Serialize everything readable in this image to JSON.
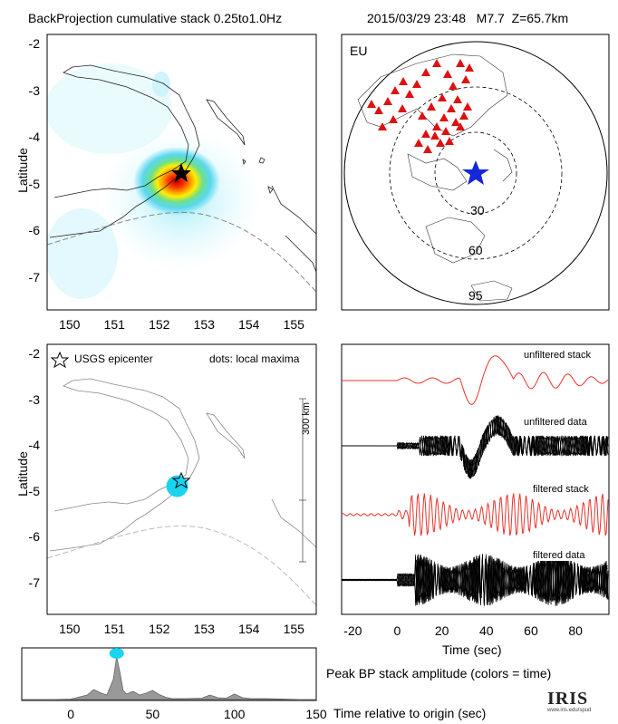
{
  "header": {
    "title": "BackProjection cumulative stack 0.25to1.0Hz",
    "event": "2015/03/29 23:48   M7.7  Z=65.7km"
  },
  "map_panel": {
    "ylabel": "Latitude",
    "yticks": [
      "-2",
      "-3",
      "-4",
      "-5",
      "-6",
      "-7"
    ],
    "xticks": [
      "150",
      "151",
      "152",
      "153",
      "154",
      "155"
    ]
  },
  "globe_panel": {
    "label": "EU",
    "ring_labels": [
      "30",
      "60",
      "95"
    ]
  },
  "maxima_panel": {
    "ylabel": "Latitude",
    "legend_star": "USGS epicenter",
    "legend_dots": "dots: local maxima",
    "scale_label": "300 km",
    "yticks": [
      "-2",
      "-3",
      "-4",
      "-5",
      "-6",
      "-7"
    ],
    "xticks": [
      "150",
      "151",
      "152",
      "153",
      "154",
      "155"
    ]
  },
  "traces_panel": {
    "labels": [
      "unfiltered stack",
      "unfiltered data",
      "filtered stack",
      "filtered data"
    ],
    "xticks": [
      "-20",
      "0",
      "20",
      "40",
      "60",
      "80"
    ],
    "xlabel": "Time (sec)"
  },
  "peak_panel": {
    "caption": "Peak BP stack amplitude (colors = time)",
    "xticks": [
      "0",
      "50",
      "100",
      "150"
    ],
    "xlabel": "Time relative to origin (sec)"
  },
  "logo": {
    "text": "IRIS",
    "url": "www.iris.edu/spud"
  },
  "colors": {
    "stack_trace": "#e8332a",
    "data_trace": "#000000",
    "epicenter_star_globe": "#1428d8",
    "stations": "#dd1111",
    "maxima": "#19d4ee"
  },
  "chart_data": [
    {
      "type": "heatmap",
      "xlim": [
        149.5,
        155.5
      ],
      "ylim": [
        -7.7,
        -1.8
      ],
      "peak": {
        "lon": 152.4,
        "lat": -4.9
      },
      "epicenter": {
        "lon": 152.55,
        "lat": -4.75
      }
    },
    {
      "type": "scatter",
      "xlim": [
        149.5,
        155.5
      ],
      "ylim": [
        -7.7,
        -1.8
      ],
      "local_maxima": [
        {
          "lon": 152.4,
          "lat": -4.9
        }
      ],
      "epicenter": {
        "lon": 152.55,
        "lat": -4.75
      }
    },
    {
      "type": "line",
      "xlim": [
        -25,
        95
      ],
      "series": [
        {
          "name": "unfiltered stack"
        },
        {
          "name": "unfiltered data"
        },
        {
          "name": "filtered stack"
        },
        {
          "name": "filtered data"
        }
      ]
    },
    {
      "type": "area",
      "xlim": [
        -30,
        150
      ],
      "x": [
        -30,
        -10,
        0,
        10,
        14,
        18,
        22,
        26,
        28,
        30,
        32,
        34,
        38,
        42,
        46,
        50,
        54,
        58,
        62,
        70,
        80,
        85,
        90,
        95,
        100,
        105,
        110,
        120,
        130,
        140,
        150
      ],
      "values": [
        0.0,
        0.0,
        0.01,
        0.1,
        0.22,
        0.15,
        0.1,
        0.45,
        0.95,
        0.6,
        0.2,
        0.12,
        0.18,
        0.1,
        0.14,
        0.2,
        0.11,
        0.05,
        0.02,
        0.02,
        0.03,
        0.1,
        0.04,
        0.03,
        0.12,
        0.04,
        0.02,
        0.02,
        0.01,
        0.0,
        0.0
      ],
      "peak_time": 28
    }
  ]
}
